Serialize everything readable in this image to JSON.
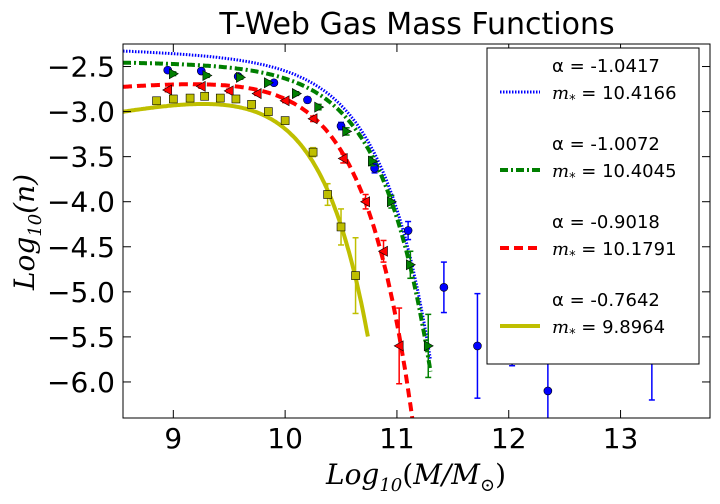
{
  "chart_data": {
    "type": "line",
    "title": "T-Web Gas Mass Functions",
    "xlabel_parts": {
      "main": "Log",
      "sub": "10",
      "arg_open": "(",
      "arg_num": "M/M",
      "arg_sub": "⊙",
      "arg_close": ")"
    },
    "ylabel_parts": {
      "main": "Log",
      "sub": "10",
      "arg": "(n)"
    },
    "xlim": [
      8.55,
      13.8
    ],
    "ylim": [
      -6.4,
      -2.25
    ],
    "xticks": [
      9,
      10,
      11,
      12,
      13
    ],
    "yticks": [
      -2.5,
      -3.0,
      -3.5,
      -4.0,
      -4.5,
      -5.0,
      -5.5,
      -6.0
    ],
    "xtick_labels": [
      "9",
      "10",
      "11",
      "12",
      "13"
    ],
    "ytick_labels": [
      "−2.5",
      "−3.0",
      "−3.5",
      "−4.0",
      "−4.5",
      "−5.0",
      "−5.5",
      "−6.0"
    ],
    "legend_position": "right",
    "series": [
      {
        "alpha_label": "α = -1.0417",
        "mstar_label": "m* = 10.4166",
        "mstar_value": "= 10.4166",
        "color": "#0000ff",
        "marker": "circle",
        "line_style": "dotted",
        "phi_star": -2.4,
        "alpha": -1.0417,
        "m_star": 10.4166,
        "points": [
          {
            "x": 8.95,
            "y": -2.54,
            "err": 0.02
          },
          {
            "x": 9.25,
            "y": -2.55,
            "err": 0.02
          },
          {
            "x": 9.58,
            "y": -2.61,
            "err": 0.02
          },
          {
            "x": 9.9,
            "y": -2.68,
            "err": 0.02
          },
          {
            "x": 10.2,
            "y": -2.87,
            "err": 0.03
          },
          {
            "x": 10.5,
            "y": -3.16,
            "err": 0.04
          },
          {
            "x": 10.8,
            "y": -3.63,
            "err": 0.05
          },
          {
            "x": 11.1,
            "y": -4.32,
            "err": 0.1
          },
          {
            "x": 11.42,
            "y": -4.95,
            "err": 0.28
          },
          {
            "x": 11.72,
            "y": -5.6,
            "err": 0.58
          },
          {
            "x": 12.03,
            "y": -5.6,
            "err": 0.22
          },
          {
            "x": 12.35,
            "y": -6.1,
            "err": 0.45
          },
          {
            "x": 13.28,
            "y": -5.6,
            "err": 0.6
          }
        ]
      },
      {
        "alpha_label": "α = -1.0072",
        "mstar_label": "m* = 10.4045",
        "mstar_value": "= 10.4045",
        "color": "#007f00",
        "marker": "triangle-right",
        "line_style": "dashdot",
        "phi_star": -2.465,
        "alpha": -1.0072,
        "m_star": 10.4045,
        "points": [
          {
            "x": 9.0,
            "y": -2.58,
            "err": 0.02
          },
          {
            "x": 9.3,
            "y": -2.6,
            "err": 0.02
          },
          {
            "x": 9.6,
            "y": -2.62,
            "err": 0.02
          },
          {
            "x": 9.85,
            "y": -2.68,
            "err": 0.02
          },
          {
            "x": 10.1,
            "y": -2.8,
            "err": 0.02
          },
          {
            "x": 10.3,
            "y": -2.95,
            "err": 0.03
          },
          {
            "x": 10.55,
            "y": -3.22,
            "err": 0.04
          },
          {
            "x": 10.78,
            "y": -3.55,
            "err": 0.05
          },
          {
            "x": 10.95,
            "y": -4.0,
            "err": 0.07
          },
          {
            "x": 11.12,
            "y": -4.7,
            "err": 0.15
          },
          {
            "x": 11.28,
            "y": -5.6,
            "err": 0.35
          }
        ]
      },
      {
        "alpha_label": "α = -0.9018",
        "mstar_label": "m* = 10.1791",
        "mstar_value": "= 10.1791",
        "color": "#ff0000",
        "marker": "triangle-left",
        "line_style": "dashed",
        "phi_star": -2.555,
        "alpha": -0.9018,
        "m_star": 10.1791,
        "points": [
          {
            "x": 8.95,
            "y": -2.76,
            "err": 0.02
          },
          {
            "x": 9.25,
            "y": -2.72,
            "err": 0.02
          },
          {
            "x": 9.5,
            "y": -2.77,
            "err": 0.02
          },
          {
            "x": 9.75,
            "y": -2.8,
            "err": 0.02
          },
          {
            "x": 10.0,
            "y": -2.88,
            "err": 0.02
          },
          {
            "x": 10.25,
            "y": -3.08,
            "err": 0.03
          },
          {
            "x": 10.52,
            "y": -3.52,
            "err": 0.05
          },
          {
            "x": 10.72,
            "y": -4.0,
            "err": 0.08
          },
          {
            "x": 10.88,
            "y": -4.55,
            "err": 0.12
          },
          {
            "x": 11.02,
            "y": -5.6,
            "err": 0.42
          }
        ]
      },
      {
        "alpha_label": "α = -0.7642",
        "mstar_label": "m* = 9.8964",
        "mstar_value": "= 9.8964",
        "color": "#bfbf00",
        "marker": "square",
        "line_style": "solid",
        "phi_star": -2.665,
        "alpha": -0.7642,
        "m_star": 9.8964,
        "points": [
          {
            "x": 8.85,
            "y": -2.88,
            "err": 0.02
          },
          {
            "x": 9.0,
            "y": -2.86,
            "err": 0.02
          },
          {
            "x": 9.15,
            "y": -2.85,
            "err": 0.02
          },
          {
            "x": 9.28,
            "y": -2.83,
            "err": 0.02
          },
          {
            "x": 9.42,
            "y": -2.85,
            "err": 0.02
          },
          {
            "x": 9.56,
            "y": -2.86,
            "err": 0.02
          },
          {
            "x": 9.7,
            "y": -2.92,
            "err": 0.02
          },
          {
            "x": 9.85,
            "y": -3.0,
            "err": 0.02
          },
          {
            "x": 10.0,
            "y": -3.1,
            "err": 0.03
          },
          {
            "x": 10.25,
            "y": -3.45,
            "err": 0.05
          },
          {
            "x": 10.38,
            "y": -3.92,
            "err": 0.12
          },
          {
            "x": 10.5,
            "y": -4.28,
            "err": 0.2
          },
          {
            "x": 10.63,
            "y": -4.82,
            "err": 0.42
          }
        ]
      }
    ]
  }
}
